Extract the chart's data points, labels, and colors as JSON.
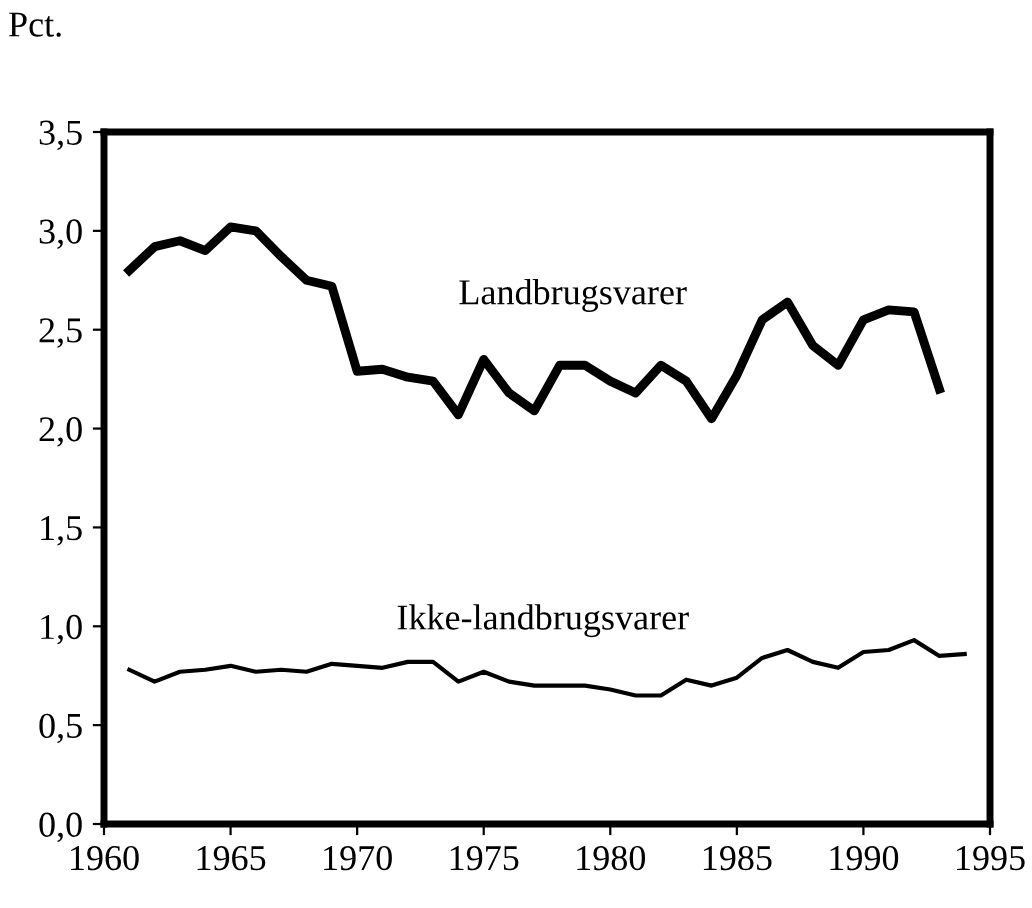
{
  "chart_data": {
    "type": "line",
    "ylabel": "Pct.",
    "x": [
      1961,
      1962,
      1963,
      1964,
      1965,
      1966,
      1967,
      1968,
      1969,
      1970,
      1971,
      1972,
      1973,
      1974,
      1975,
      1976,
      1977,
      1978,
      1979,
      1980,
      1981,
      1982,
      1983,
      1984,
      1985,
      1986,
      1987,
      1988,
      1989,
      1990,
      1991,
      1992,
      1993,
      1994
    ],
    "series": [
      {
        "name": "Landbrugsvarer",
        "color": "#000000",
        "values": [
          2.8,
          2.92,
          2.95,
          2.9,
          3.02,
          3.0,
          2.87,
          2.75,
          2.72,
          2.29,
          2.3,
          2.26,
          2.24,
          2.07,
          2.35,
          2.18,
          2.09,
          2.32,
          2.32,
          2.24,
          2.18,
          2.32,
          2.24,
          2.05,
          2.27,
          2.55,
          2.64,
          2.42,
          2.32,
          2.55,
          2.6,
          2.59,
          2.2,
          null
        ]
      },
      {
        "name": "Ikke-landbrugsvarer",
        "color": "#000000",
        "values": [
          0.78,
          0.72,
          0.77,
          0.78,
          0.8,
          0.77,
          0.78,
          0.77,
          0.81,
          0.8,
          0.79,
          0.82,
          0.82,
          0.72,
          0.77,
          0.72,
          0.7,
          0.7,
          0.7,
          0.68,
          0.65,
          0.65,
          0.73,
          0.7,
          0.74,
          0.84,
          0.88,
          0.82,
          0.79,
          0.87,
          0.88,
          0.93,
          0.85,
          0.86
        ]
      }
    ],
    "xlim": [
      1960,
      1995
    ],
    "xticks": [
      1960,
      1965,
      1970,
      1975,
      1980,
      1985,
      1990,
      1995
    ],
    "ylim": [
      0,
      3.5
    ],
    "yticks": [
      {
        "value": 0,
        "label": "0,0"
      },
      {
        "value": 0.5,
        "label": "0,5"
      },
      {
        "value": 1,
        "label": "1,0"
      },
      {
        "value": 1.5,
        "label": "1,5"
      },
      {
        "value": 2,
        "label": "2,0"
      },
      {
        "value": 2.5,
        "label": "2,5"
      },
      {
        "value": 3,
        "label": "3,0"
      },
      {
        "value": 3.5,
        "label": "3,5"
      }
    ],
    "grid": false,
    "legend": false,
    "marker": "none",
    "line_style": "solid"
  }
}
